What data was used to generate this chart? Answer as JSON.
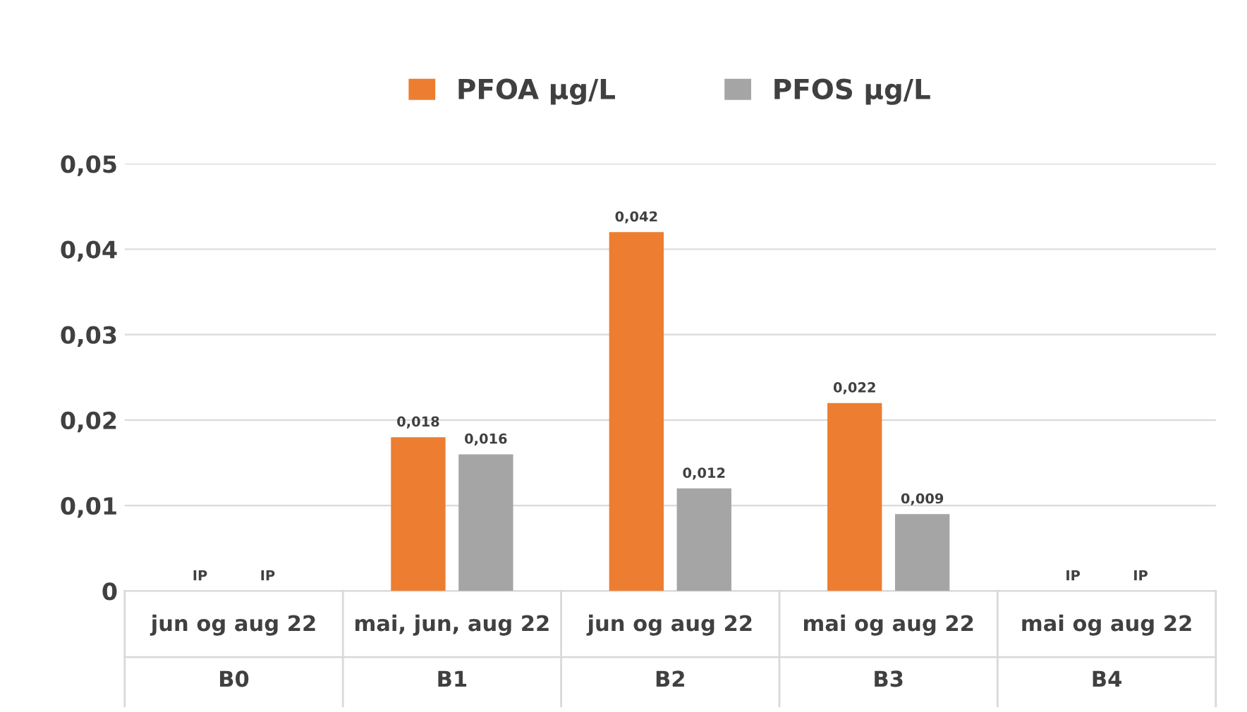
{
  "chart_data": {
    "type": "bar",
    "categories": [
      "jun og aug 22\nB0",
      "mai, jun, aug 22\nB1",
      "jun og aug 22\nB2",
      "mai og aug 22\nB3",
      "mai og aug 22\nB4"
    ],
    "series": [
      {
        "name": "PFOA µg/L",
        "color": "#ed7d31",
        "values": [
          null,
          0.018,
          0.042,
          0.022,
          null
        ],
        "value_labels": [
          "IP",
          "0,018",
          "0,042",
          "0,022",
          "IP"
        ]
      },
      {
        "name": "PFOS µg/L",
        "color": "#a5a5a5",
        "values": [
          null,
          0.016,
          0.012,
          0.009,
          null
        ],
        "value_labels": [
          "IP",
          "0,016",
          "0,012",
          "0,009",
          "IP"
        ]
      }
    ],
    "ylim": [
      0,
      0.05
    ],
    "yticks": [
      {
        "value": 0,
        "label": "0"
      },
      {
        "value": 0.01,
        "label": "0,01"
      },
      {
        "value": 0.02,
        "label": "0,02"
      },
      {
        "value": 0.03,
        "label": "0,03"
      },
      {
        "value": 0.04,
        "label": "0,04"
      },
      {
        "value": 0.05,
        "label": "0,05"
      }
    ],
    "grid": "y",
    "legend": "top"
  }
}
